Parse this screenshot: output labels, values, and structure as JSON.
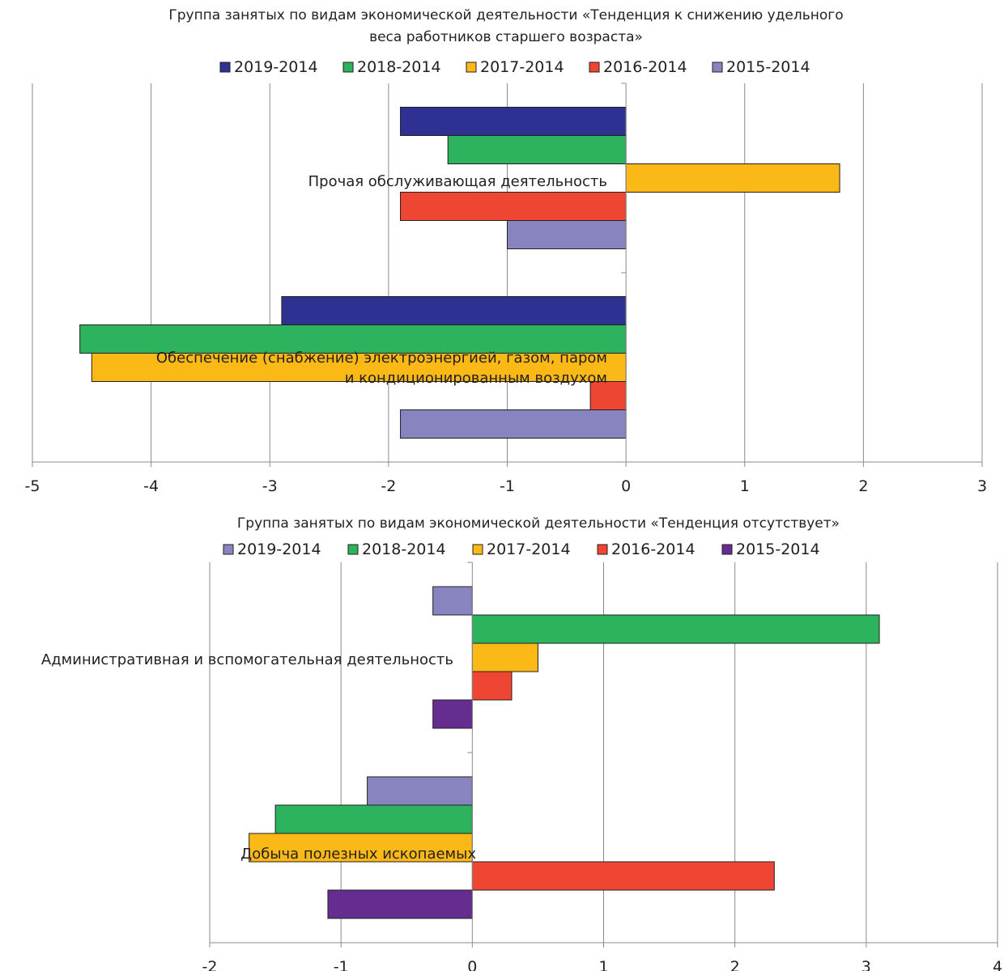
{
  "chart_data": [
    {
      "type": "bar",
      "orientation": "horizontal",
      "title": "Группа занятых по видам экономической деятельности «Тенденция к снижению удельного веса работников старшего возраста»",
      "title_lines": [
        "Группа занятых по видам экономической деятельности «Тенденция к снижению удельного",
        "веса работников старшего возраста»"
      ],
      "categories": [
        "Прочая обслуживающая деятельность",
        "Обеспечение (снабжение) электроэнергией, газом, паром и кондиционированным воздухом"
      ],
      "category_label_lines": [
        [
          "Прочая обслуживающая деятельность"
        ],
        [
          "Обеспечение (снабжение) электроэнергией, газом, паром",
          "и кондиционированным воздухом"
        ]
      ],
      "series": [
        {
          "name": "2019-2014",
          "color": "#2e3192",
          "values": [
            -1.9,
            -2.9
          ]
        },
        {
          "name": "2018-2014",
          "color": "#2db35d",
          "values": [
            -1.5,
            -4.6
          ]
        },
        {
          "name": "2017-2014",
          "color": "#fbb917",
          "values": [
            1.8,
            -4.5
          ]
        },
        {
          "name": "2016-2014",
          "color": "#ef4634",
          "values": [
            -1.9,
            -0.3
          ]
        },
        {
          "name": "2015-2014",
          "color": "#8884c0",
          "values": [
            -1.0,
            -1.9
          ]
        }
      ],
      "xlim": [
        -5,
        3
      ],
      "ticks": [
        "-5",
        "-4",
        "-3",
        "-2",
        "-1",
        "0",
        "1",
        "2",
        "3"
      ],
      "grid": true,
      "legend_position": "top"
    },
    {
      "type": "bar",
      "orientation": "horizontal",
      "title": "Группа занятых по видам экономической деятельности «Тенденция отсутствует»",
      "title_lines": [
        "Группа занятых по видам экономической деятельности «Тенденция отсутствует»"
      ],
      "categories": [
        "Административная и вспомогательная деятельность",
        "Добыча полезных ископаемых"
      ],
      "category_label_lines": [
        [
          "Административная и вспомогательная деятельность"
        ],
        [
          "Добыча полезных ископаемых"
        ]
      ],
      "series": [
        {
          "name": "2019-2014",
          "color": "#8884c0",
          "values": [
            -0.3,
            -0.8
          ]
        },
        {
          "name": "2018-2014",
          "color": "#2db35d",
          "values": [
            3.1,
            -1.5
          ]
        },
        {
          "name": "2017-2014",
          "color": "#fbb917",
          "values": [
            0.5,
            -1.7
          ]
        },
        {
          "name": "2016-2014",
          "color": "#ef4634",
          "values": [
            0.3,
            2.3
          ]
        },
        {
          "name": "2015-2014",
          "color": "#662d91",
          "values": [
            -0.3,
            -1.1
          ]
        }
      ],
      "xlim": [
        -2,
        4
      ],
      "ticks": [
        "-2",
        "-1",
        "0",
        "1",
        "2",
        "3",
        "4"
      ],
      "grid": true,
      "legend_position": "top"
    }
  ]
}
